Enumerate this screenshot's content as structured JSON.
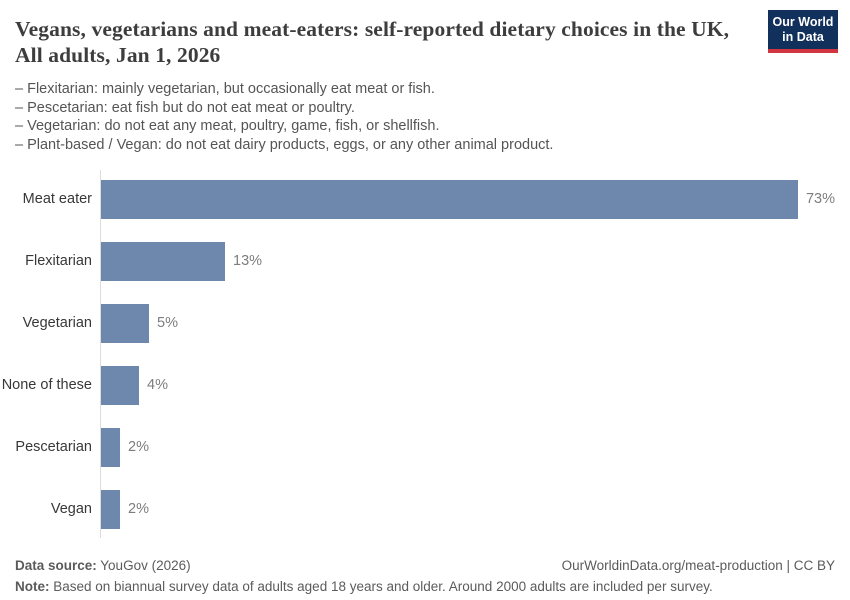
{
  "header": {
    "title": "Vegans, vegetarians and meat-eaters: self-reported dietary choices in the UK, All adults, Jan 1, 2026",
    "logo": {
      "line1": "Our World",
      "line2": "in Data"
    }
  },
  "subtitle_lines": [
    "– Flexitarian: mainly vegetarian, but occasionally eat meat or fish.",
    "– Pescetarian: eat fish but do not eat meat or poultry.",
    "– Vegetarian: do not eat any meat, poultry, game, fish, or shellfish.",
    "– Plant-based / Vegan: do not eat dairy products, eggs, or any other animal product."
  ],
  "chart_data": {
    "type": "bar",
    "orientation": "horizontal",
    "title": "Vegans, vegetarians and meat-eaters: self-reported dietary choices in the UK, All adults, Jan 1, 2026",
    "categories": [
      "Meat eater",
      "Flexitarian",
      "Vegetarian",
      "None of these",
      "Pescetarian",
      "Vegan"
    ],
    "values": [
      73,
      13,
      5,
      4,
      2,
      2
    ],
    "value_labels": [
      "73%",
      "13%",
      "5%",
      "4%",
      "2%",
      "2%"
    ],
    "unit": "%",
    "xlim": [
      0,
      73
    ],
    "grid": false,
    "legend": "none",
    "bar_color": "#6d87ad",
    "axis_line_color": "#dcdcdc"
  },
  "footer": {
    "datasource_label": "Data source:",
    "datasource_value": " YouGov (2026)",
    "credit": "OurWorldinData.org/meat-production | CC BY",
    "note_label": "Note:",
    "note_value": " Based on biannual survey data of adults aged 18 years and older. Around 2000 adults are included per survey."
  },
  "colors": {
    "title": "#3d3d3d",
    "subtitle": "#555555",
    "category_label": "#383838",
    "value_label": "#7d7d7d",
    "footer_text": "#5b5b5b",
    "bar": "#6d87ad",
    "axis_line": "#dcdcdc",
    "logo_background": "#12305c",
    "logo_underline": "#d1353f"
  }
}
